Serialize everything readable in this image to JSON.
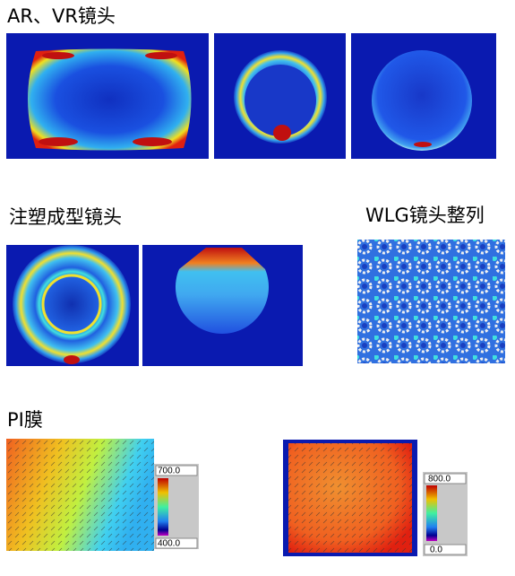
{
  "sections": [
    {
      "title": "AR、VR镜头"
    },
    {
      "title": "注塑成型镜头"
    },
    {
      "title": "WLG镜头整列"
    },
    {
      "title": "PI膜"
    }
  ],
  "colorbars": [
    {
      "max": "700.0",
      "min": "400.0"
    },
    {
      "max": "800.0",
      "min": "0.0"
    }
  ]
}
